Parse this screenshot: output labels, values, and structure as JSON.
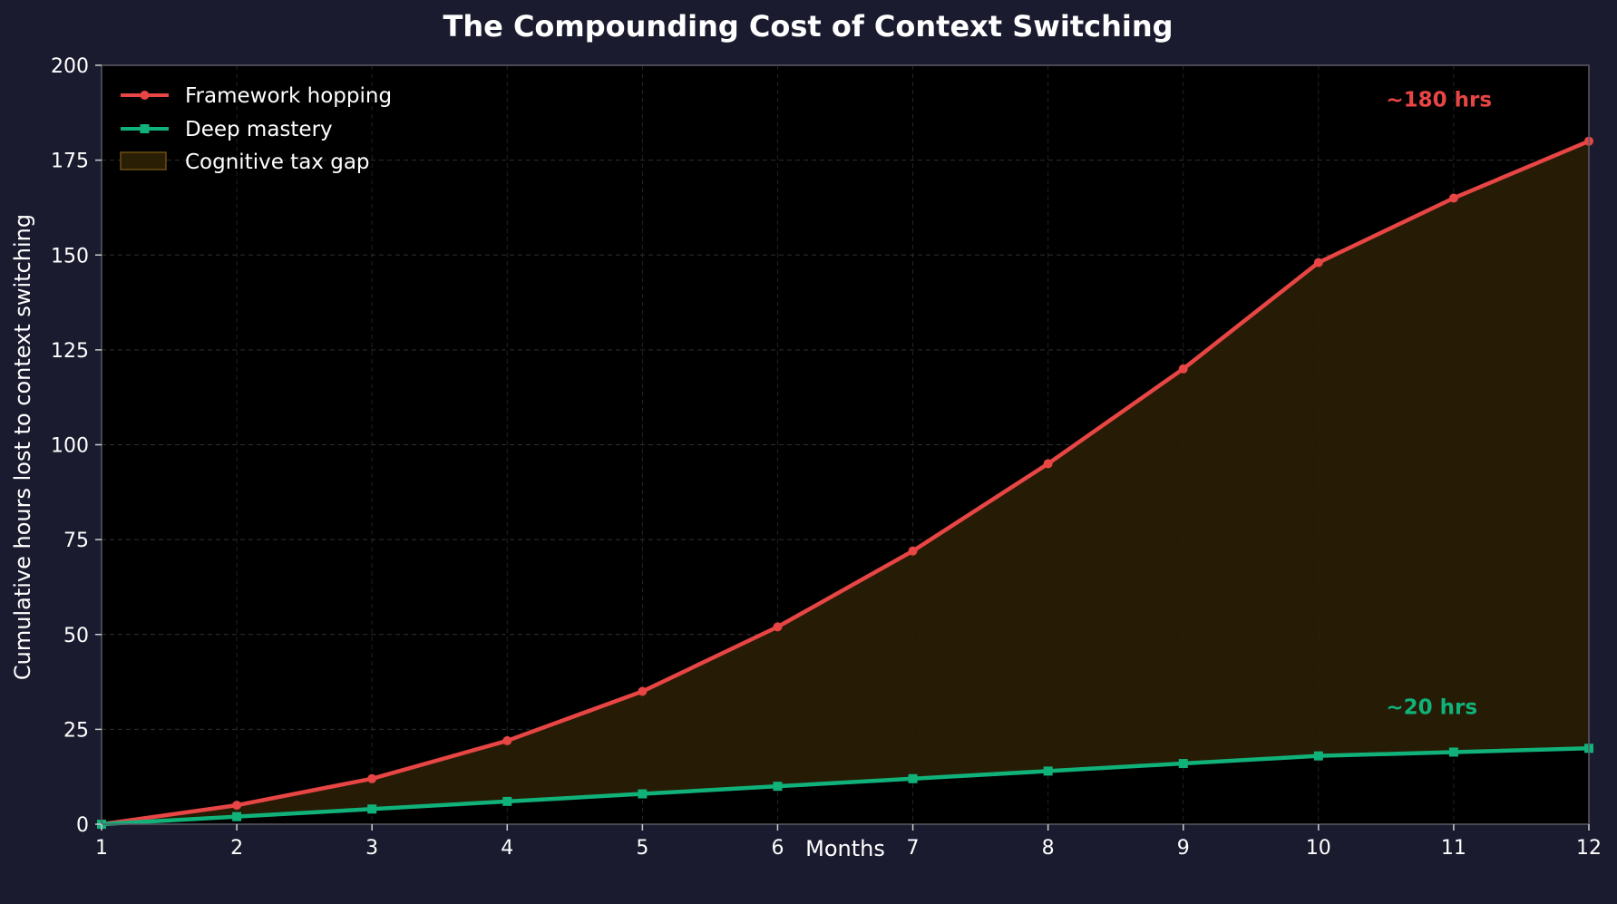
{
  "colors": {
    "background": "#1a1b2e",
    "plot_background": "#000000",
    "hopping": "#e84545",
    "mastery": "#10b27a",
    "gap_fill": "#2a1e04",
    "gap_edge": "#6b4e12",
    "grid": "#3a3a3a",
    "text": "#ffffff"
  },
  "chart_data": {
    "type": "line",
    "title": "The Compounding Cost of Context Switching",
    "xlabel": "Months",
    "ylabel": "Cumulative hours lost to context switching",
    "x": [
      1,
      2,
      3,
      4,
      5,
      6,
      7,
      8,
      9,
      10,
      11,
      12
    ],
    "xlim": [
      1,
      12
    ],
    "ylim": [
      0,
      200
    ],
    "xticks": [
      1,
      2,
      3,
      4,
      5,
      6,
      7,
      8,
      9,
      10,
      11,
      12
    ],
    "yticks": [
      0,
      25,
      50,
      75,
      100,
      125,
      150,
      175,
      200
    ],
    "grid": true,
    "legend_position": "top-left",
    "series": [
      {
        "name": "Framework hopping",
        "values": [
          0,
          5,
          12,
          22,
          35,
          52,
          72,
          95,
          120,
          148,
          165,
          180
        ],
        "color": "#e84545",
        "marker": "circle"
      },
      {
        "name": "Deep mastery",
        "values": [
          0,
          2,
          4,
          6,
          8,
          10,
          12,
          14,
          16,
          18,
          19,
          20
        ],
        "color": "#10b27a",
        "marker": "square"
      }
    ],
    "fill_between": {
      "name": "Cognitive tax gap",
      "color": "#2a1e04"
    },
    "annotations": [
      {
        "text": "~180 hrs",
        "x": 10.5,
        "y": 191,
        "color": "#e84545"
      },
      {
        "text": "~20 hrs",
        "x": 10.5,
        "y": 31,
        "color": "#10b27a"
      }
    ]
  }
}
